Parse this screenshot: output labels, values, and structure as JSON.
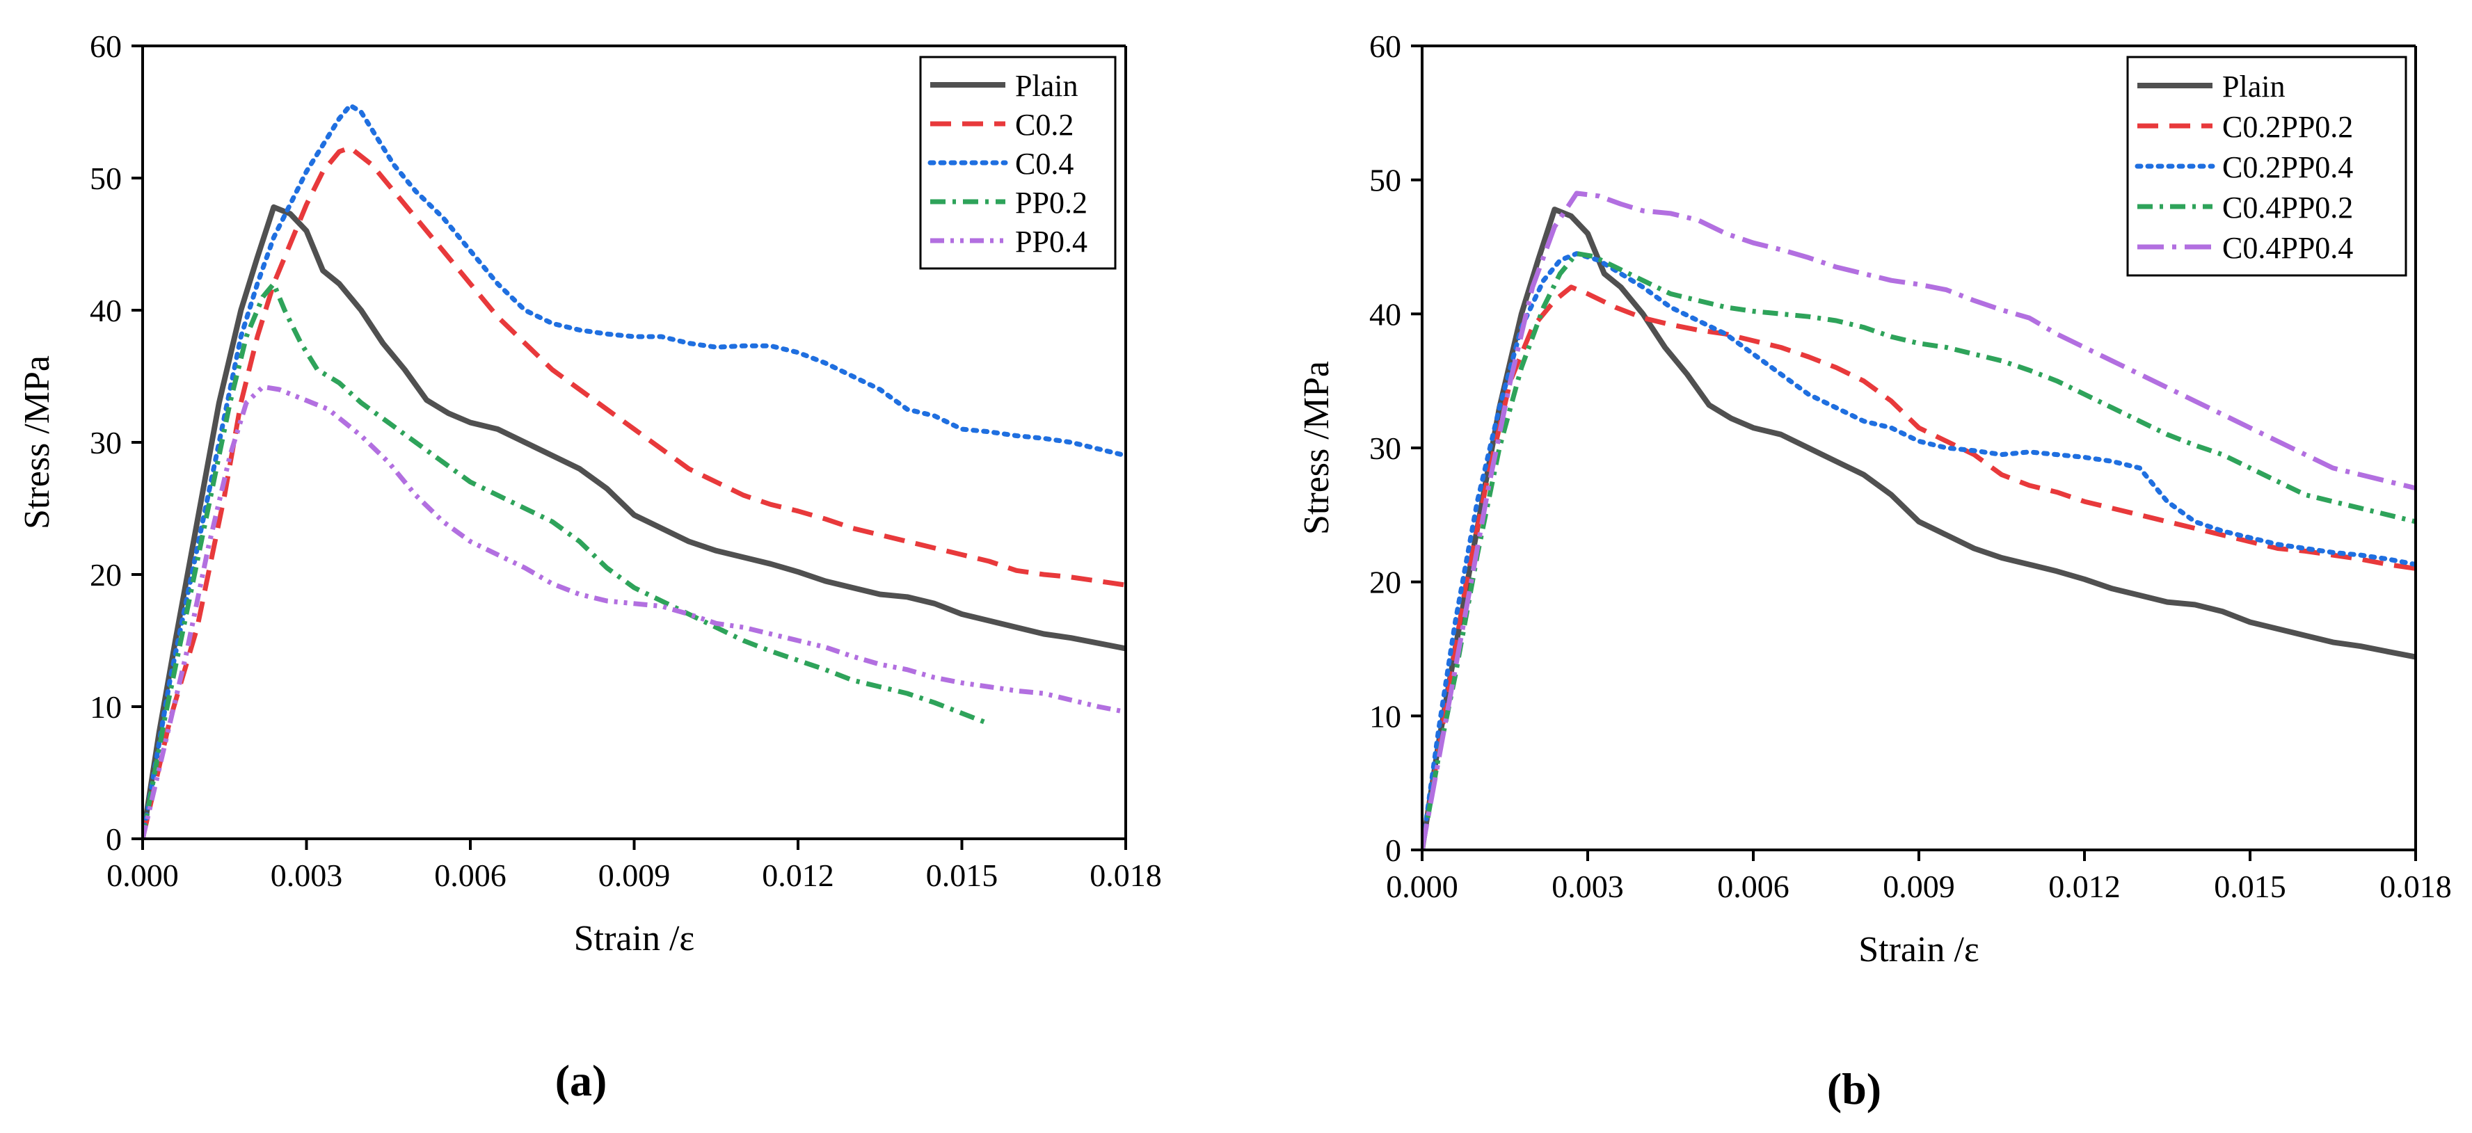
{
  "figure": {
    "panels": [
      "(a)",
      "(b)"
    ],
    "colors": {
      "Plain": "#505050",
      "red": "#e8393b",
      "blue": "#1f6fe0",
      "green": "#2ea35a",
      "purple": "#b26fe0"
    }
  },
  "chart_data": [
    {
      "type": "line",
      "panel": "a",
      "caption": "(a)",
      "xlabel": "Strain /ε",
      "ylabel": "Stress /MPa",
      "xlim": [
        0,
        0.018
      ],
      "ylim": [
        0,
        60
      ],
      "xticks": [
        "0.000",
        "0.003",
        "0.006",
        "0.009",
        "0.012",
        "0.015",
        "0.018"
      ],
      "yticks": [
        "0",
        "10",
        "20",
        "30",
        "40",
        "50",
        "60"
      ],
      "legend_position": "top-right",
      "series": [
        {
          "name": "Plain",
          "color": "#505050",
          "dash": "solid",
          "x": [
            0,
            0.0003,
            0.0006,
            0.001,
            0.0014,
            0.0018,
            0.0021,
            0.0024,
            0.0027,
            0.003,
            0.0033,
            0.0036,
            0.004,
            0.0044,
            0.0048,
            0.0052,
            0.0056,
            0.006,
            0.0065,
            0.007,
            0.0075,
            0.008,
            0.0085,
            0.009,
            0.0095,
            0.01,
            0.0105,
            0.011,
            0.0115,
            0.012,
            0.0125,
            0.013,
            0.0135,
            0.014,
            0.0145,
            0.015,
            0.0155,
            0.016,
            0.0165,
            0.017,
            0.0175,
            0.018
          ],
          "y": [
            0,
            8,
            15,
            24,
            33,
            40,
            44,
            47.8,
            47.3,
            46,
            43,
            42,
            40,
            37.5,
            35.5,
            33.2,
            32.2,
            31.5,
            31,
            30,
            29,
            28,
            26.5,
            24.5,
            23.5,
            22.5,
            21.8,
            21.3,
            20.8,
            20.2,
            19.5,
            19,
            18.5,
            18.3,
            17.8,
            17,
            16.5,
            16,
            15.5,
            15.2,
            14.8,
            14.4
          ]
        },
        {
          "name": "C0.2",
          "color": "#e8393b",
          "dash": "long",
          "x": [
            0,
            0.0005,
            0.001,
            0.0015,
            0.0018,
            0.0021,
            0.0024,
            0.0027,
            0.003,
            0.0033,
            0.0036,
            0.0038,
            0.0042,
            0.0046,
            0.005,
            0.0055,
            0.006,
            0.0065,
            0.007,
            0.0075,
            0.008,
            0.0085,
            0.009,
            0.0095,
            0.01,
            0.0105,
            0.011,
            0.0115,
            0.012,
            0.0125,
            0.013,
            0.0135,
            0.014,
            0.0145,
            0.015,
            0.0155,
            0.016,
            0.0165,
            0.017,
            0.0175,
            0.018
          ],
          "y": [
            0,
            9,
            16,
            26,
            33,
            38,
            42,
            45,
            48,
            50.5,
            52,
            52.3,
            51,
            49,
            47,
            44.5,
            42,
            39.5,
            37.5,
            35.5,
            34,
            32.5,
            31,
            29.5,
            28,
            27,
            26,
            25.3,
            24.8,
            24.2,
            23.5,
            23,
            22.5,
            22,
            21.5,
            21,
            20.3,
            20,
            19.8,
            19.5,
            19.2
          ]
        },
        {
          "name": "C0.4",
          "color": "#1f6fe0",
          "dash": "dot",
          "x": [
            0,
            0.0005,
            0.001,
            0.0015,
            0.0018,
            0.0021,
            0.0024,
            0.0027,
            0.003,
            0.0033,
            0.0036,
            0.0038,
            0.004,
            0.0043,
            0.0046,
            0.005,
            0.0055,
            0.006,
            0.0065,
            0.007,
            0.0075,
            0.008,
            0.0085,
            0.009,
            0.0095,
            0.01,
            0.0105,
            0.011,
            0.0115,
            0.012,
            0.0125,
            0.013,
            0.0135,
            0.014,
            0.0145,
            0.015,
            0.0155,
            0.016,
            0.0165,
            0.017,
            0.0175,
            0.018
          ],
          "y": [
            0,
            12,
            22,
            32,
            38,
            42,
            45.5,
            48,
            50.5,
            52.5,
            54.5,
            55.5,
            55,
            53,
            51,
            49,
            47,
            44.5,
            42,
            40,
            39,
            38.5,
            38.2,
            38,
            38,
            37.5,
            37.2,
            37.3,
            37.3,
            36.8,
            36,
            35,
            34,
            32.5,
            32,
            31,
            30.8,
            30.5,
            30.3,
            30,
            29.5,
            29
          ]
        },
        {
          "name": "PP0.2",
          "color": "#2ea35a",
          "dash": "dashdot",
          "x": [
            0,
            0.0004,
            0.0008,
            0.0012,
            0.0016,
            0.0019,
            0.0022,
            0.0024,
            0.0026,
            0.0029,
            0.0032,
            0.0036,
            0.004,
            0.0045,
            0.005,
            0.0055,
            0.006,
            0.0065,
            0.007,
            0.0075,
            0.008,
            0.0085,
            0.009,
            0.0095,
            0.01,
            0.0105,
            0.011,
            0.0115,
            0.012,
            0.0125,
            0.013,
            0.0135,
            0.014,
            0.0145,
            0.015,
            0.0155
          ],
          "y": [
            0,
            9,
            17,
            25,
            33,
            38,
            41,
            42,
            40,
            37.5,
            35.5,
            34.5,
            33,
            31.5,
            30,
            28.5,
            27,
            26,
            25,
            24,
            22.5,
            20.5,
            19,
            18,
            17,
            16,
            15,
            14.2,
            13.5,
            12.8,
            12,
            11.5,
            11,
            10.3,
            9.5,
            8.7
          ]
        },
        {
          "name": "PP0.4",
          "color": "#b26fe0",
          "dash": "dashdotdot",
          "x": [
            0,
            0.0004,
            0.0008,
            0.0012,
            0.0016,
            0.0019,
            0.0022,
            0.0025,
            0.0028,
            0.0031,
            0.0034,
            0.0037,
            0.004,
            0.0045,
            0.005,
            0.0055,
            0.006,
            0.0065,
            0.007,
            0.0075,
            0.008,
            0.0085,
            0.009,
            0.0095,
            0.01,
            0.0105,
            0.011,
            0.0115,
            0.012,
            0.0125,
            0.013,
            0.0135,
            0.014,
            0.0145,
            0.015,
            0.0155,
            0.016,
            0.0165,
            0.017,
            0.0175,
            0.018
          ],
          "y": [
            0,
            7,
            14,
            22,
            29,
            33,
            34.2,
            34,
            33.5,
            33,
            32.5,
            31.5,
            30.5,
            28.5,
            26,
            24,
            22.5,
            21.5,
            20.5,
            19.3,
            18.5,
            18,
            17.8,
            17.6,
            17,
            16.3,
            16,
            15.5,
            15,
            14.5,
            13.8,
            13.2,
            12.8,
            12.2,
            11.8,
            11.5,
            11.2,
            11,
            10.5,
            10,
            9.6
          ]
        }
      ]
    },
    {
      "type": "line",
      "panel": "b",
      "caption": "(b)",
      "xlabel": "Strain /ε",
      "ylabel": "Stress /MPa",
      "xlim": [
        0,
        0.018
      ],
      "ylim": [
        0,
        60
      ],
      "xticks": [
        "0.000",
        "0.003",
        "0.006",
        "0.009",
        "0.012",
        "0.015",
        "0.018"
      ],
      "yticks": [
        "0",
        "10",
        "20",
        "30",
        "40",
        "50",
        "60"
      ],
      "legend_position": "top-right",
      "series": [
        {
          "name": "Plain",
          "color": "#505050",
          "dash": "solid",
          "x": [
            0,
            0.0003,
            0.0006,
            0.001,
            0.0014,
            0.0018,
            0.0021,
            0.0024,
            0.0027,
            0.003,
            0.0033,
            0.0036,
            0.004,
            0.0044,
            0.0048,
            0.0052,
            0.0056,
            0.006,
            0.0065,
            0.007,
            0.0075,
            0.008,
            0.0085,
            0.009,
            0.0095,
            0.01,
            0.0105,
            0.011,
            0.0115,
            0.012,
            0.0125,
            0.013,
            0.0135,
            0.014,
            0.0145,
            0.015,
            0.0155,
            0.016,
            0.0165,
            0.017,
            0.0175,
            0.018
          ],
          "y": [
            0,
            8,
            15,
            24,
            33,
            40,
            44,
            47.8,
            47.3,
            46,
            43,
            42,
            40,
            37.5,
            35.5,
            33.2,
            32.2,
            31.5,
            31,
            30,
            29,
            28,
            26.5,
            24.5,
            23.5,
            22.5,
            21.8,
            21.3,
            20.8,
            20.2,
            19.5,
            19,
            18.5,
            18.3,
            17.8,
            17,
            16.5,
            16,
            15.5,
            15.2,
            14.8,
            14.4
          ]
        },
        {
          "name": "C0.2PP0.2",
          "color": "#e8393b",
          "dash": "long",
          "x": [
            0,
            0.0004,
            0.0008,
            0.0012,
            0.0016,
            0.002,
            0.0024,
            0.0027,
            0.003,
            0.0035,
            0.004,
            0.0045,
            0.005,
            0.0055,
            0.006,
            0.0065,
            0.007,
            0.0075,
            0.008,
            0.0085,
            0.009,
            0.0095,
            0.01,
            0.0105,
            0.011,
            0.0115,
            0.012,
            0.0125,
            0.013,
            0.0135,
            0.014,
            0.0145,
            0.015,
            0.0155,
            0.016,
            0.0165,
            0.017,
            0.0175,
            0.018
          ],
          "y": [
            0,
            10,
            20,
            28,
            35,
            39,
            41,
            42,
            41.5,
            40.5,
            39.7,
            39.2,
            38.8,
            38.5,
            38,
            37.5,
            36.8,
            36,
            35,
            33.5,
            31.5,
            30.5,
            29.5,
            28,
            27.2,
            26.7,
            26,
            25.5,
            25,
            24.5,
            24,
            23.5,
            23,
            22.5,
            22.3,
            22,
            21.7,
            21.3,
            21
          ]
        },
        {
          "name": "C0.2PP0.4",
          "color": "#1f6fe0",
          "dash": "dot",
          "x": [
            0,
            0.0003,
            0.0006,
            0.001,
            0.0014,
            0.0018,
            0.0022,
            0.0025,
            0.0028,
            0.0032,
            0.0036,
            0.004,
            0.0045,
            0.005,
            0.0055,
            0.006,
            0.0065,
            0.007,
            0.0075,
            0.008,
            0.0085,
            0.009,
            0.0095,
            0.01,
            0.0105,
            0.011,
            0.0115,
            0.012,
            0.0125,
            0.013,
            0.0135,
            0.014,
            0.0145,
            0.015,
            0.0155,
            0.016,
            0.0165,
            0.017,
            0.0175,
            0.018
          ],
          "y": [
            0,
            9,
            17,
            26,
            33,
            39,
            42.5,
            44,
            44.5,
            44,
            43,
            42,
            40.5,
            39.5,
            38.5,
            37,
            35.5,
            34,
            33,
            32,
            31.5,
            30.5,
            30,
            29.8,
            29.5,
            29.7,
            29.5,
            29.3,
            29,
            28.5,
            26,
            24.5,
            23.8,
            23.3,
            22.8,
            22.5,
            22.2,
            22,
            21.7,
            21.3
          ]
        },
        {
          "name": "C0.4PP0.2",
          "color": "#2ea35a",
          "dash": "dashdot",
          "x": [
            0,
            0.0003,
            0.0006,
            0.001,
            0.0014,
            0.0018,
            0.0022,
            0.0025,
            0.0028,
            0.0031,
            0.0035,
            0.004,
            0.0045,
            0.005,
            0.0055,
            0.006,
            0.0065,
            0.007,
            0.0075,
            0.008,
            0.0085,
            0.009,
            0.0095,
            0.01,
            0.0105,
            0.011,
            0.0115,
            0.012,
            0.0125,
            0.013,
            0.0135,
            0.014,
            0.0145,
            0.015,
            0.0155,
            0.016,
            0.0165,
            0.017,
            0.0175,
            0.018
          ],
          "y": [
            0,
            7,
            13,
            22,
            30,
            36,
            40.5,
            43,
            44.5,
            44.3,
            43.5,
            42.5,
            41.5,
            41,
            40.5,
            40.2,
            40,
            39.8,
            39.5,
            39,
            38.3,
            37.8,
            37.5,
            37,
            36.5,
            35.8,
            35,
            34,
            33,
            32,
            31,
            30.2,
            29.5,
            28.5,
            27.5,
            26.5,
            26,
            25.5,
            25,
            24.5
          ]
        },
        {
          "name": "C0.4PP0.4",
          "color": "#b26fe0",
          "dash": "longdashdot",
          "x": [
            0,
            0.0004,
            0.0008,
            0.0012,
            0.0016,
            0.002,
            0.0024,
            0.0028,
            0.0032,
            0.0036,
            0.004,
            0.0045,
            0.005,
            0.0055,
            0.006,
            0.0065,
            0.007,
            0.0075,
            0.008,
            0.0085,
            0.009,
            0.0095,
            0.01,
            0.0105,
            0.011,
            0.0115,
            0.012,
            0.0125,
            0.013,
            0.0135,
            0.014,
            0.0145,
            0.015,
            0.0155,
            0.016,
            0.0165,
            0.017,
            0.0175,
            0.018
          ],
          "y": [
            0,
            9,
            18,
            27,
            35,
            42,
            46.5,
            49,
            48.8,
            48.2,
            47.7,
            47.5,
            47,
            46,
            45.3,
            44.8,
            44.2,
            43.5,
            43,
            42.5,
            42.2,
            41.8,
            41,
            40.3,
            39.7,
            38.5,
            37.5,
            36.5,
            35.5,
            34.5,
            33.5,
            32.5,
            31.5,
            30.5,
            29.5,
            28.5,
            28,
            27.5,
            27
          ]
        }
      ]
    }
  ]
}
